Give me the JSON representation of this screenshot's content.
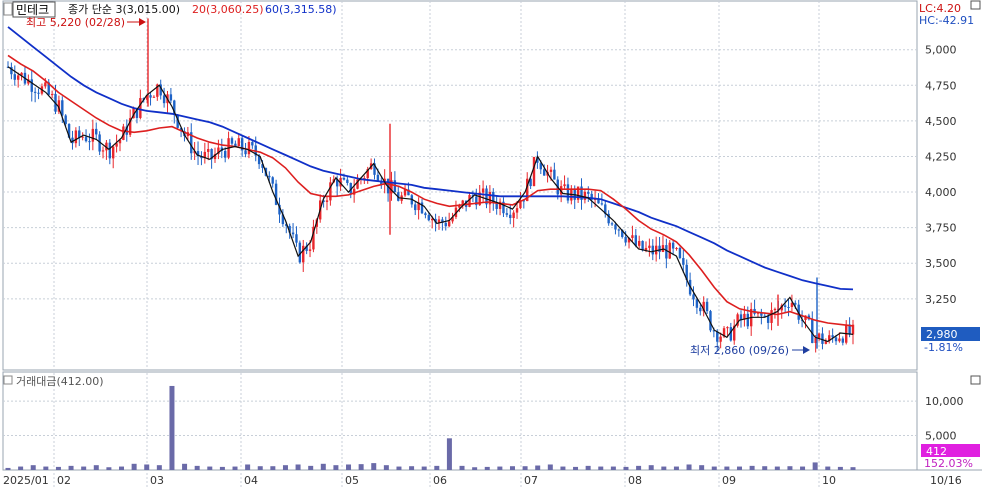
{
  "header": {
    "ticker": "민테크",
    "ma3_label": "종가 단순 3(3,015.00)",
    "ma20_label": "20(3,060.25)",
    "ma60_label": "60(3,315.58)",
    "lc": "LC:4.20",
    "hc": "HC:-42.91"
  },
  "annotations": {
    "high": "최고 5,220 (02/28)",
    "low": "최저 2,860 (09/26)",
    "last_price": "2,980",
    "last_change": "-1.81%"
  },
  "volume": {
    "title": "거래대금(412.00)",
    "last_value": "412",
    "last_change": "152.03%"
  },
  "colors": {
    "up": "#e8262b",
    "down": "#1d62c6",
    "ma3": "#111111",
    "ma20": "#dd1f1f",
    "ma60": "#1030c8",
    "volume_bar": "#6a6aa8",
    "grid": "#c8cfd8",
    "price_tag_bg": "#1f5cc0",
    "volume_tag_bg": "#e020e0"
  },
  "chart_data": [
    {
      "type": "candlestick",
      "ylim": [
        2750,
        5300
      ],
      "y_ticks": [
        "5,000",
        "4,750",
        "4,500",
        "4,250",
        "4,000",
        "3,750",
        "3,500",
        "3,250"
      ],
      "y_tick_values": [
        5000,
        4750,
        4500,
        4250,
        4000,
        3750,
        3500,
        3250
      ],
      "x_labels": [
        "2025/01",
        "02",
        "03",
        "04",
        "05",
        "06",
        "07",
        "08",
        "09",
        "10",
        "10/16"
      ],
      "series": [
        {
          "name": "종가 단순 3",
          "values": [
            4880,
            4820,
            4760,
            4700,
            4600,
            4350,
            4400,
            4370,
            4300,
            4380,
            4550,
            4680,
            4750,
            4600,
            4400,
            4260,
            4230,
            4300,
            4320,
            4300,
            4250,
            4000,
            3800,
            3550,
            3650,
            3950,
            4100,
            4000,
            4100,
            4200,
            4050,
            3960,
            3950,
            3900,
            3780,
            3800,
            3900,
            3980,
            3950,
            3920,
            3880,
            4000,
            4250,
            4100,
            3990,
            3980,
            3960,
            3880,
            3800,
            3700,
            3600,
            3580,
            3600,
            3550,
            3350,
            3200,
            3030,
            2980,
            3100,
            3120,
            3120,
            3160,
            3260,
            3100,
            2980,
            2950,
            3010,
            3000
          ]
        },
        {
          "name": "20",
          "values": [
            4960,
            4900,
            4850,
            4780,
            4700,
            4640,
            4580,
            4520,
            4470,
            4430,
            4420,
            4430,
            4450,
            4460,
            4420,
            4380,
            4350,
            4330,
            4320,
            4300,
            4280,
            4240,
            4170,
            4070,
            3990,
            3970,
            3970,
            3980,
            4010,
            4040,
            4060,
            4040,
            4000,
            3950,
            3920,
            3900,
            3910,
            3920,
            3930,
            3920,
            3910,
            3950,
            4010,
            4020,
            4020,
            4020,
            4020,
            4010,
            3950,
            3880,
            3800,
            3740,
            3700,
            3650,
            3560,
            3450,
            3330,
            3230,
            3180,
            3160,
            3150,
            3140,
            3160,
            3130,
            3100,
            3080,
            3070,
            3060
          ]
        },
        {
          "name": "60",
          "values": [
            5160,
            5090,
            5020,
            4950,
            4880,
            4810,
            4750,
            4700,
            4660,
            4620,
            4590,
            4570,
            4560,
            4550,
            4530,
            4510,
            4490,
            4460,
            4420,
            4380,
            4340,
            4300,
            4260,
            4220,
            4180,
            4150,
            4130,
            4110,
            4090,
            4080,
            4070,
            4060,
            4050,
            4030,
            4020,
            4010,
            4000,
            3990,
            3980,
            3970,
            3970,
            3970,
            3970,
            3970,
            3970,
            3965,
            3960,
            3950,
            3920,
            3890,
            3860,
            3820,
            3790,
            3760,
            3720,
            3680,
            3640,
            3590,
            3550,
            3510,
            3470,
            3440,
            3410,
            3380,
            3360,
            3340,
            3320,
            3316
          ]
        }
      ]
    },
    {
      "type": "bar",
      "title": "거래대금(412.00)",
      "ylim": [
        0,
        13500
      ],
      "y_ticks": [
        "10,000",
        "5,000"
      ],
      "y_tick_values": [
        10000,
        5000
      ],
      "values": [
        300,
        500,
        700,
        500,
        450,
        600,
        500,
        700,
        400,
        500,
        900,
        800,
        700,
        12200,
        900,
        600,
        500,
        450,
        500,
        800,
        550,
        550,
        700,
        800,
        600,
        900,
        700,
        800,
        850,
        1000,
        700,
        500,
        550,
        500,
        600,
        4600,
        600,
        400,
        450,
        500,
        550,
        550,
        650,
        800,
        500,
        450,
        600,
        500,
        500,
        450,
        600,
        700,
        500,
        500,
        800,
        700,
        500,
        500,
        500,
        600,
        550,
        500,
        550,
        500,
        1100,
        500,
        450,
        412
      ]
    }
  ]
}
